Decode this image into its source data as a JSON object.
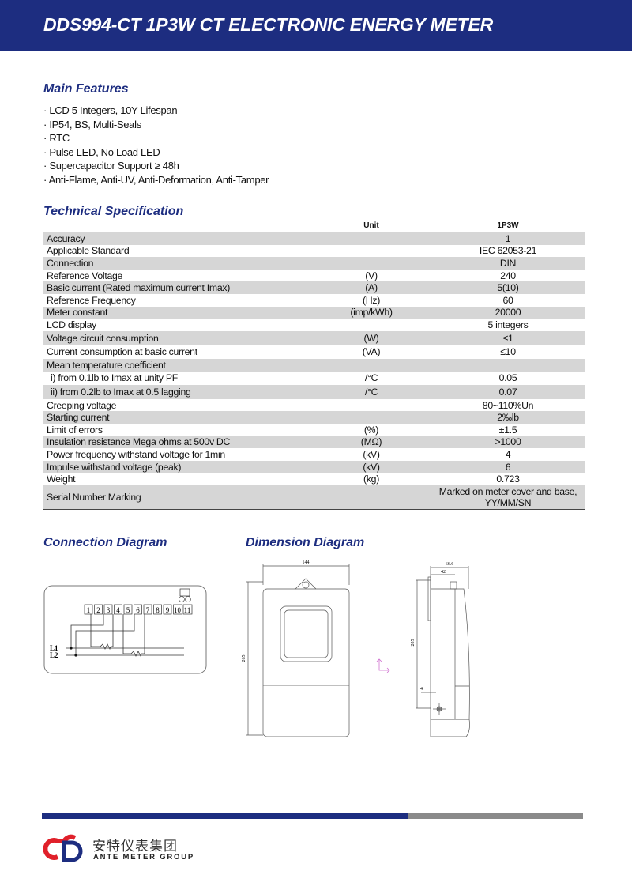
{
  "header": {
    "title": "DDS994-CT 1P3W CT ELECTRONIC ENERGY METER"
  },
  "features": {
    "title": "Main Features",
    "items": [
      "LCD 5 Integers, 10Y Lifespan",
      "IP54, BS, Multi-Seals",
      "RTC",
      "Pulse LED, No Load LED",
      "Supercapacitor Support ≥ 48h",
      "Anti-Flame, Anti-UV, Anti-Deformation, Anti-Tamper"
    ]
  },
  "spec": {
    "title": "Technical Specification",
    "columns": {
      "unit": "Unit",
      "value": "1P3W"
    },
    "rows": [
      {
        "label": "Accuracy",
        "unit": "",
        "value": "1"
      },
      {
        "label": "Applicable Standard",
        "unit": "",
        "value": "IEC 62053-21"
      },
      {
        "label": "Connection",
        "unit": "",
        "value": "DIN"
      },
      {
        "label": "Reference Voltage",
        "unit": "(V)",
        "value": "240"
      },
      {
        "label": "Basic current (Rated maximum current Imax)",
        "unit": "(A)",
        "value": "5(10)"
      },
      {
        "label": "Reference Frequency",
        "unit": "(Hz)",
        "value": "60"
      },
      {
        "label": "Meter constant",
        "unit": "(imp/kWh)",
        "value": "20000"
      },
      {
        "label": "LCD display",
        "unit": "",
        "value": "5 integers"
      },
      {
        "label": "Voltage circuit consumption",
        "unit": "(W)",
        "value": "≤1"
      },
      {
        "label": "Current consumption at basic current",
        "unit": "(VA)",
        "value": "≤10"
      },
      {
        "label": "Mean temperature coefficient",
        "unit": "",
        "value": ""
      },
      {
        "label": "i) from 0.1lb to Imax at unity PF",
        "unit": "/°C",
        "value": "0.05"
      },
      {
        "label": "ii) from 0.2lb to Imax at 0.5 lagging",
        "unit": "/°C",
        "value": "0.07"
      },
      {
        "label": "Creeping voltage",
        "unit": "",
        "value": "80~110%Un"
      },
      {
        "label": "Starting current",
        "unit": "",
        "value": "2‰lb"
      },
      {
        "label": "Limit of errors",
        "unit": "(%)",
        "value": "±1.5"
      },
      {
        "label": "Insulation resistance Mega ohms at 500v DC",
        "unit": "(MΩ)",
        "value": ">1000"
      },
      {
        "label": "Power frequency withstand voltage for 1min",
        "unit": "(kV)",
        "value": "4"
      },
      {
        "label": "Impulse withstand voltage (peak)",
        "unit": "(kV)",
        "value": "6"
      },
      {
        "label": "Weight",
        "unit": "(kg)",
        "value": "0.723"
      },
      {
        "label": "Serial Number Marking",
        "unit": "",
        "value": "Marked on meter cover and base,",
        "value2": "YY/MM/SN"
      }
    ]
  },
  "connection": {
    "title": "Connection Diagram",
    "terminals": [
      "1",
      "2",
      "3",
      "4",
      "5",
      "6",
      "7",
      "8",
      "9",
      "10",
      "11"
    ],
    "lines": [
      "L1",
      "L2"
    ]
  },
  "dimension": {
    "title": "Dimension Diagram",
    "front_width": "144",
    "front_height": "265",
    "side_depth": "66.6",
    "side_inner": "42",
    "side_height": "205",
    "side_offset": "4"
  },
  "footer": {
    "brand_cn": "安特仪表集团",
    "brand_en": "ANTE METER GROUP",
    "colors": {
      "primary": "#1d2d80",
      "accent": "#e0202a",
      "gray": "#8a8a8a"
    }
  }
}
